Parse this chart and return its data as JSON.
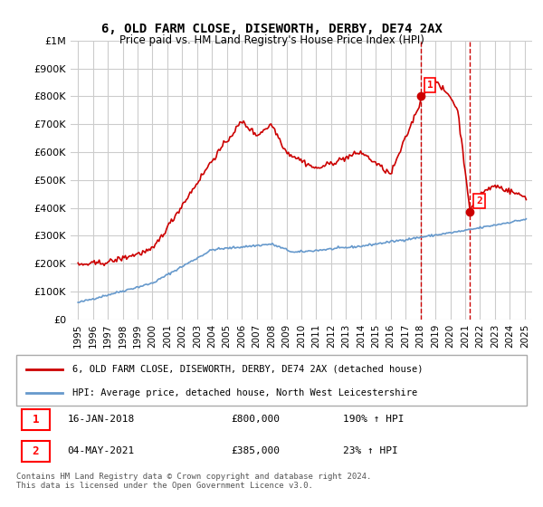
{
  "title": "6, OLD FARM CLOSE, DISEWORTH, DERBY, DE74 2AX",
  "subtitle": "Price paid vs. HM Land Registry's House Price Index (HPI)",
  "legend_label_red": "6, OLD FARM CLOSE, DISEWORTH, DERBY, DE74 2AX (detached house)",
  "legend_label_blue": "HPI: Average price, detached house, North West Leicestershire",
  "point1_label": "16-JAN-2018",
  "point1_value": "£800,000",
  "point1_hpi": "190% ↑ HPI",
  "point2_label": "04-MAY-2021",
  "point2_value": "£385,000",
  "point2_hpi": "23% ↑ HPI",
  "footnote": "Contains HM Land Registry data © Crown copyright and database right 2024.\nThis data is licensed under the Open Government Licence v3.0.",
  "red_color": "#cc0000",
  "blue_color": "#6699cc",
  "vline_color": "#cc0000",
  "background_color": "#ffffff",
  "grid_color": "#cccccc",
  "ylim": [
    0,
    1000000
  ],
  "yticks": [
    0,
    100000,
    200000,
    300000,
    400000,
    500000,
    600000,
    700000,
    800000,
    900000,
    1000000
  ],
  "year_start": 1995,
  "year_end": 2025,
  "point1_year": 2018.04,
  "point1_val": 800000,
  "point2_year": 2021.33,
  "point2_val": 385000
}
